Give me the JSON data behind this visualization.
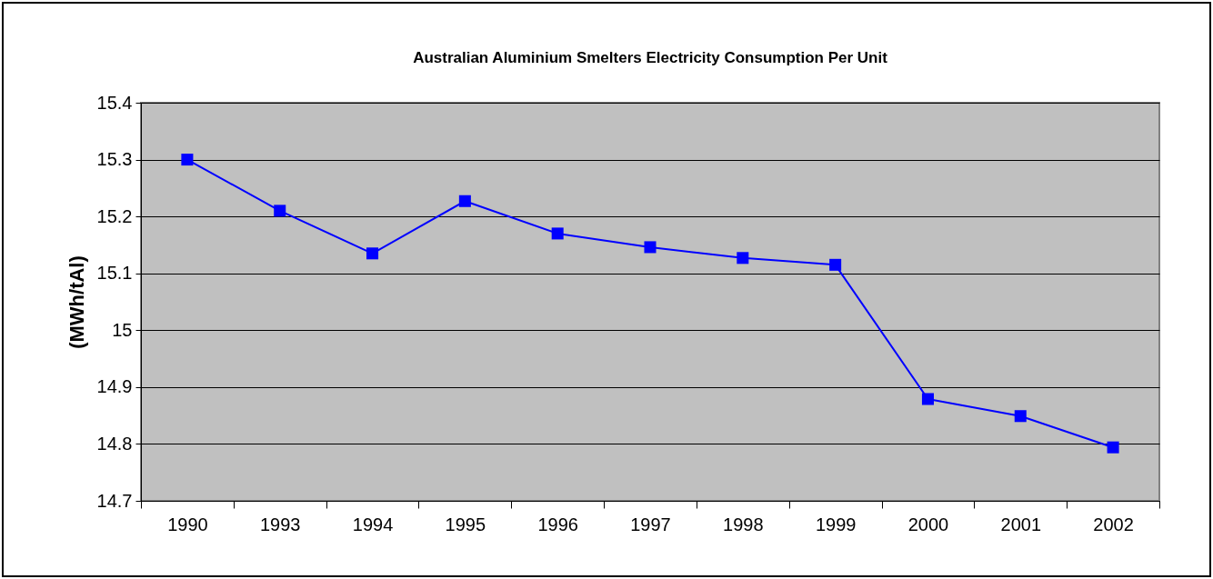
{
  "chart_data": {
    "type": "line",
    "title": "Australian Aluminium Smelters Electricity Consumption Per Unit",
    "ylabel": "(MWh/tAl)",
    "categories": [
      "1990",
      "1993",
      "1994",
      "1995",
      "1996",
      "1997",
      "1998",
      "1999",
      "2000",
      "2001",
      "2002"
    ],
    "series": [
      {
        "color": "#0000ff",
        "values": [
          15.3,
          15.21,
          15.135,
          15.227,
          15.17,
          15.146,
          15.127,
          15.115,
          14.879,
          14.849,
          14.794
        ]
      }
    ],
    "ylim": [
      14.7,
      15.4
    ],
    "yticks": [
      14.7,
      14.8,
      14.9,
      15,
      15.1,
      15.2,
      15.3,
      15.4
    ],
    "grid": "y",
    "legend": false,
    "marker": "square",
    "line_style": "solid"
  }
}
